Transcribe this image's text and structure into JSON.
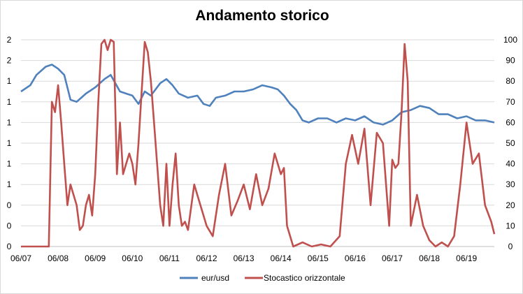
{
  "chart_data": {
    "type": "line",
    "title": "Andamento storico",
    "x_tick_labels": [
      "06/07",
      "06/08",
      "06/09",
      "06/10",
      "06/11",
      "06/12",
      "06/13",
      "06/14",
      "06/15",
      "06/16",
      "06/17",
      "06/18",
      "06/19"
    ],
    "left_axis": {
      "tick_labels": [
        "0",
        "0",
        "0",
        "1",
        "1",
        "1",
        "1",
        "1",
        "1",
        "2",
        "2"
      ],
      "ylim": [
        0,
        10
      ]
    },
    "right_axis": {
      "tick_labels": [
        "0",
        "10",
        "20",
        "30",
        "40",
        "50",
        "60",
        "70",
        "80",
        "90",
        "100"
      ],
      "ylim": [
        0,
        100
      ]
    },
    "grid": true,
    "legend_position": "bottom",
    "series": [
      {
        "name": "eur/usd",
        "axis": "left",
        "color": "#4f81bd",
        "x": [
          "2007-06",
          "2007-09",
          "2007-11",
          "2008-02",
          "2008-04",
          "2008-06",
          "2008-08",
          "2008-10",
          "2008-12",
          "2009-03",
          "2009-06",
          "2009-09",
          "2009-11",
          "2010-02",
          "2010-04",
          "2010-06",
          "2010-08",
          "2010-10",
          "2010-12",
          "2011-03",
          "2011-05",
          "2011-07",
          "2011-09",
          "2011-12",
          "2012-03",
          "2012-05",
          "2012-07",
          "2012-09",
          "2012-12",
          "2013-03",
          "2013-06",
          "2013-09",
          "2013-12",
          "2014-03",
          "2014-05",
          "2014-07",
          "2014-09",
          "2014-11",
          "2015-01",
          "2015-03",
          "2015-06",
          "2015-09",
          "2015-12",
          "2016-03",
          "2016-06",
          "2016-09",
          "2016-12",
          "2017-03",
          "2017-06",
          "2017-09",
          "2017-12",
          "2018-03",
          "2018-06",
          "2018-09",
          "2018-12",
          "2019-03",
          "2019-06",
          "2019-09",
          "2019-12",
          "2020-03"
        ],
        "y": [
          7.5,
          7.8,
          8.3,
          8.7,
          8.8,
          8.6,
          8.3,
          7.1,
          7.0,
          7.4,
          7.7,
          8.1,
          8.3,
          7.5,
          7.4,
          7.3,
          6.9,
          7.5,
          7.3,
          7.9,
          8.1,
          7.8,
          7.4,
          7.2,
          7.3,
          6.9,
          6.8,
          7.2,
          7.3,
          7.5,
          7.5,
          7.6,
          7.8,
          7.7,
          7.6,
          7.3,
          6.9,
          6.6,
          6.1,
          6.0,
          6.2,
          6.2,
          6.0,
          6.2,
          6.1,
          6.3,
          6.0,
          5.9,
          6.1,
          6.5,
          6.6,
          6.8,
          6.7,
          6.4,
          6.4,
          6.2,
          6.3,
          6.1,
          6.1,
          6.0
        ]
      },
      {
        "name": "Stocastico orizzontale",
        "axis": "right",
        "color": "#c0504d",
        "x": [
          "2007-06",
          "2007-09",
          "2007-12",
          "2008-03",
          "2008-04",
          "2008-05",
          "2008-06",
          "2008-07",
          "2008-08",
          "2008-09",
          "2008-10",
          "2008-11",
          "2008-12",
          "2009-01",
          "2009-02",
          "2009-03",
          "2009-04",
          "2009-05",
          "2009-06",
          "2009-07",
          "2009-08",
          "2009-09",
          "2009-10",
          "2009-11",
          "2009-12",
          "2010-01",
          "2010-02",
          "2010-03",
          "2010-04",
          "2010-05",
          "2010-06",
          "2010-07",
          "2010-08",
          "2010-09",
          "2010-10",
          "2010-11",
          "2010-12",
          "2011-01",
          "2011-02",
          "2011-03",
          "2011-04",
          "2011-05",
          "2011-06",
          "2011-07",
          "2011-08",
          "2011-09",
          "2011-10",
          "2011-11",
          "2011-12",
          "2012-02",
          "2012-04",
          "2012-06",
          "2012-08",
          "2012-10",
          "2012-12",
          "2013-02",
          "2013-04",
          "2013-06",
          "2013-08",
          "2013-10",
          "2013-12",
          "2014-02",
          "2014-04",
          "2014-06",
          "2014-07",
          "2014-08",
          "2014-10",
          "2015-01",
          "2015-04",
          "2015-07",
          "2015-10",
          "2016-01",
          "2016-03",
          "2016-05",
          "2016-07",
          "2016-09",
          "2016-11",
          "2017-01",
          "2017-03",
          "2017-05",
          "2017-06",
          "2017-07",
          "2017-08",
          "2017-09",
          "2017-10",
          "2017-11",
          "2017-12",
          "2018-02",
          "2018-04",
          "2018-06",
          "2018-08",
          "2018-10",
          "2018-12",
          "2019-02",
          "2019-04",
          "2019-06",
          "2019-08",
          "2019-10",
          "2019-12",
          "2020-02",
          "2020-03"
        ],
        "y": [
          0,
          0,
          0,
          0,
          70,
          65,
          78,
          60,
          40,
          20,
          30,
          25,
          20,
          8,
          10,
          20,
          25,
          15,
          35,
          70,
          98,
          100,
          95,
          100,
          99,
          35,
          60,
          35,
          40,
          45,
          40,
          30,
          50,
          75,
          99,
          94,
          80,
          60,
          40,
          20,
          10,
          40,
          10,
          30,
          45,
          20,
          10,
          12,
          8,
          30,
          20,
          10,
          5,
          25,
          40,
          15,
          22,
          30,
          18,
          35,
          20,
          28,
          45,
          35,
          38,
          10,
          0,
          2,
          0,
          1,
          0,
          5,
          40,
          54,
          40,
          57,
          20,
          55,
          50,
          10,
          42,
          38,
          40,
          65,
          98,
          80,
          10,
          25,
          10,
          3,
          0,
          2,
          0,
          5,
          30,
          60,
          40,
          45,
          20,
          12,
          6
        ]
      }
    ]
  }
}
